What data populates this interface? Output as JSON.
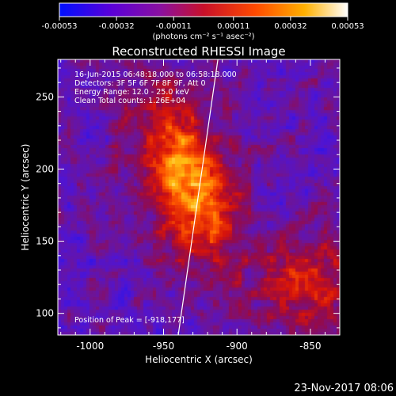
{
  "colorbar": {
    "tick_labels": [
      "-0.00053",
      "-0.00032",
      "-0.00011",
      "0.00011",
      "0.00032",
      "0.00053"
    ],
    "units_label": "(photons cm⁻² s⁻¹ asec⁻²)",
    "range": [
      -0.00053,
      0.00053
    ],
    "colormap": "blue-purple-red-yellow-white"
  },
  "chart_data": {
    "type": "heatmap",
    "title": "Reconstructed RHESSI Image",
    "xlabel": "Heliocentric X (arcsec)",
    "ylabel": "Heliocentric Y (arcsec)",
    "xlim": [
      -1022,
      -830
    ],
    "ylim": [
      85,
      276
    ],
    "x_ticks": [
      -1000,
      -950,
      -900,
      -850
    ],
    "y_ticks": [
      100,
      150,
      200,
      250
    ],
    "x_tick_labels": [
      "-1000",
      "-950",
      "-900",
      "-850"
    ],
    "y_tick_labels": [
      "100",
      "150",
      "200",
      "250"
    ],
    "limb_line": {
      "x": [
        -940,
        -913
      ],
      "y": [
        85,
        276
      ]
    },
    "peak": {
      "x": -918,
      "y": 177
    },
    "annotations": [
      "16-Jun-2015 06:48:18.000 to 06:58:18.000",
      "Detectors: 3F 5F 6F 7F 8F 9F, Att 0",
      "Energy Range: 12.0 - 25.0 keV",
      "Clean     Total counts: 1.26E+04"
    ],
    "peak_label": "Position of Peak = [-918,177]",
    "timestamp": "23-Nov-2017 08:06"
  }
}
